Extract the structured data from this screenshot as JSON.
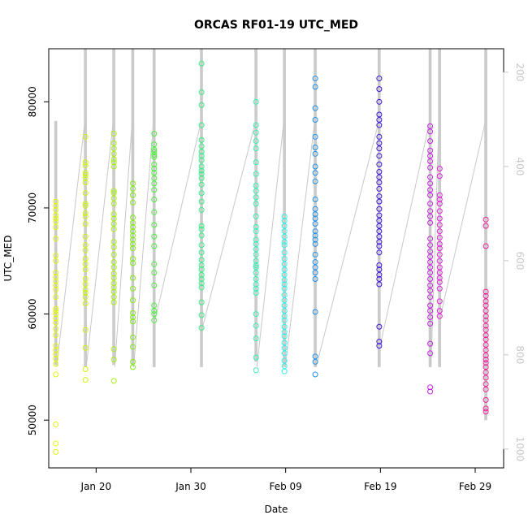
{
  "chart_data": {
    "type": "scatter",
    "title": "ORCAS RF01-19 UTC_MED",
    "xlabel": "Date",
    "ylabel": "UTC_MED",
    "x_axis": {
      "type": "date",
      "range": [
        "2016-01-15",
        "2016-03-03"
      ],
      "ticks": [
        {
          "value": "2016-01-20",
          "label": "Jan 20"
        },
        {
          "value": "2016-01-30",
          "label": "Jan 30"
        },
        {
          "value": "2016-02-09",
          "label": "Feb 09"
        },
        {
          "value": "2016-02-19",
          "label": "Feb 19"
        },
        {
          "value": "2016-02-29",
          "label": "Feb 29"
        }
      ]
    },
    "y_axis": {
      "range": [
        45500,
        85000
      ],
      "ticks": [
        50000,
        60000,
        70000,
        80000
      ]
    },
    "y2_axis": {
      "range": [
        1040,
        150
      ],
      "ticks": [
        200,
        400,
        600,
        800,
        1000
      ],
      "color": "#c8c8c8"
    },
    "background_line_color": "#c8c8c8",
    "flights": [
      {
        "date": "2016-01-15T18:00",
        "color": "#e6f50f",
        "line_top": 78200,
        "line_bottom": 55200,
        "values": [
          47000,
          47800,
          49600,
          54300,
          55300,
          55800,
          56200,
          56600,
          57000,
          58000,
          58600,
          59200,
          59600,
          60000,
          60300,
          60500,
          61600,
          62300,
          62700,
          63100,
          63500,
          63900,
          65000,
          65500,
          67100,
          68200,
          68700,
          69000,
          69300,
          69800,
          70200,
          70600
        ]
      },
      {
        "date": "2016-01-18T21:00",
        "color": "#caf50f",
        "line_top": 85000,
        "line_bottom": 55000,
        "values": [
          53800,
          54800,
          56800,
          58500,
          61000,
          61600,
          62000,
          62300,
          62800,
          63300,
          64200,
          64700,
          65200,
          66000,
          66500,
          67300,
          68500,
          69200,
          69500,
          70200,
          70400,
          71400,
          72400,
          72800,
          73100,
          73300,
          74000,
          74300,
          76700
        ]
      },
      {
        "date": "2016-01-21T21:00",
        "color": "#a5f30f",
        "line_top": 85000,
        "line_bottom": 55200,
        "values": [
          53700,
          55700,
          56700,
          61100,
          61600,
          62100,
          62500,
          62900,
          63400,
          63800,
          64400,
          64900,
          65600,
          66300,
          66800,
          68000,
          68500,
          69000,
          69400,
          70400,
          70900,
          71400,
          71600,
          73900,
          74300,
          74600,
          75100,
          75600,
          76100,
          77000
        ]
      },
      {
        "date": "2016-01-23T21:00",
        "color": "#80ef12",
        "line_top": 85000,
        "line_bottom": 55100,
        "values": [
          55000,
          55500,
          56900,
          57800,
          59300,
          59700,
          60100,
          61300,
          62400,
          63400,
          64800,
          65200,
          66200,
          66600,
          67000,
          67400,
          67800,
          68200,
          68600,
          69100,
          70500,
          71200,
          71800,
          72300
        ]
      },
      {
        "date": "2016-01-26T03:00",
        "color": "#4df03f",
        "line_top": 85000,
        "line_bottom": 55000,
        "values": [
          59400,
          60000,
          60300,
          60800,
          62700,
          63900,
          64700,
          66400,
          67300,
          68400,
          69600,
          70800,
          71700,
          72300,
          72800,
          73300,
          73700,
          74100,
          74800,
          75000,
          75300,
          75500,
          76000,
          77000
        ]
      },
      {
        "date": "2016-01-31T03:00",
        "color": "#33f082",
        "line_top": 85000,
        "line_bottom": 55000,
        "values": [
          58700,
          59900,
          61100,
          62500,
          62900,
          63300,
          63700,
          64200,
          64600,
          65100,
          65800,
          66500,
          67400,
          68000,
          68300,
          69800,
          70600,
          71400,
          72200,
          72800,
          73200,
          73500,
          73900,
          74500,
          74900,
          75300,
          75800,
          76400,
          77800,
          79700,
          80900,
          83600
        ]
      },
      {
        "date": "2016-02-05T21:00",
        "color": "#33f0b4",
        "line_top": 85000,
        "line_bottom": 55500,
        "values": [
          54700,
          55900,
          57700,
          58900,
          60000,
          62000,
          62400,
          62800,
          63300,
          63900,
          64400,
          64600,
          65000,
          65600,
          66100,
          66600,
          67000,
          67800,
          68200,
          69200,
          70400,
          71000,
          71600,
          72100,
          73200,
          74300,
          75600,
          76300,
          77100,
          77800,
          80000
        ]
      },
      {
        "date": "2016-02-08T21:00",
        "color": "#33f0e6",
        "line_top": 85000,
        "line_bottom": 55000,
        "values": [
          54600,
          55100,
          55600,
          56300,
          56800,
          57300,
          57900,
          58300,
          58800,
          59400,
          59800,
          60300,
          60800,
          61300,
          61800,
          62400,
          62800,
          63200,
          63700,
          64200,
          64700,
          65200,
          65800,
          66500,
          66800,
          67300,
          67800,
          68300,
          68800,
          69200
        ]
      },
      {
        "date": "2016-02-12T03:00",
        "color": "#1e90f0",
        "line_top": 85000,
        "line_bottom": 55000,
        "values": [
          54300,
          55500,
          56000,
          60200,
          63300,
          63900,
          64400,
          64900,
          65600,
          66600,
          67000,
          67400,
          67800,
          68500,
          69000,
          69400,
          69900,
          70800,
          72500,
          73300,
          73900,
          75100,
          75700,
          76700,
          78300,
          79400,
          81400,
          82200
        ]
      },
      {
        "date": "2016-02-18T21:00",
        "color": "#3c14dc",
        "line_top": 85000,
        "line_bottom": 55000,
        "values": [
          57000,
          57400,
          58800,
          62800,
          63300,
          63700,
          64200,
          64600,
          65800,
          66400,
          66800,
          67300,
          67800,
          68300,
          68800,
          69300,
          69900,
          70600,
          71100,
          71800,
          72400,
          72900,
          73400,
          74100,
          74900,
          75600,
          76100,
          76700,
          77800,
          78300,
          78800,
          80000,
          81200,
          82200
        ]
      },
      {
        "date": "2016-02-24T06:00",
        "color": "#c81ee6",
        "line_top": 85000,
        "line_bottom": 55000,
        "values": [
          52700,
          53100,
          56300,
          57200,
          59100,
          59700,
          60300,
          60800,
          61600,
          62200,
          62700,
          63300,
          63900,
          64400,
          64900,
          65400,
          65900,
          66500,
          67100,
          68600,
          69200,
          69700,
          70400,
          71200,
          71700,
          72300,
          72900,
          73800,
          74400,
          74900,
          75400,
          76300,
          77200,
          77700
        ]
      },
      {
        "date": "2016-02-25T06:00",
        "color": "#e61edc",
        "line_top": 85000,
        "line_bottom": 55000,
        "values": [
          59800,
          60300,
          61200,
          62400,
          63000,
          63400,
          63900,
          64400,
          65000,
          65600,
          66200,
          66600,
          67200,
          67800,
          68400,
          69000,
          69700,
          70400,
          70800,
          71200,
          73000,
          73700
        ]
      },
      {
        "date": "2016-03-01T03:00",
        "color": "#f01e96",
        "line_top": 85000,
        "line_bottom": 50000,
        "values": [
          50800,
          51100,
          51900,
          52900,
          53400,
          54000,
          54500,
          55000,
          55400,
          55700,
          56100,
          56600,
          57100,
          57600,
          58000,
          58500,
          58900,
          59400,
          59800,
          60300,
          60800,
          61200,
          61700,
          62100,
          66400,
          68300,
          68900
        ]
      }
    ]
  }
}
